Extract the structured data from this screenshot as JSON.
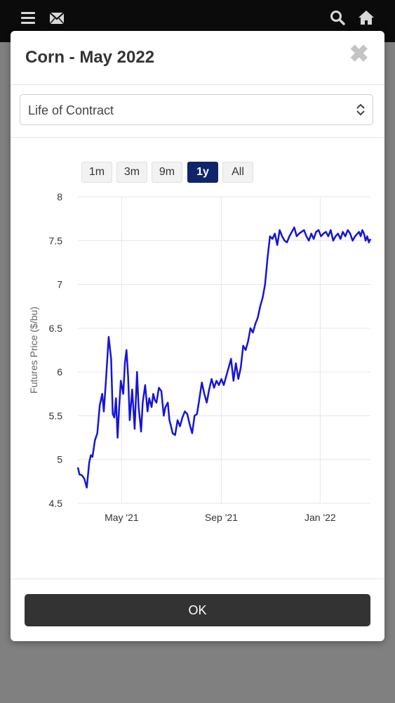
{
  "appbar": {
    "icons": [
      "menu-icon",
      "mail-icon",
      "search-icon",
      "home-icon"
    ]
  },
  "modal": {
    "title": "Corn - May 2022",
    "close_glyph": "✖",
    "select": {
      "value": "Life of Contract"
    },
    "ranges": [
      {
        "label": "1m",
        "active": false
      },
      {
        "label": "3m",
        "active": false
      },
      {
        "label": "9m",
        "active": false
      },
      {
        "label": "1y",
        "active": true
      },
      {
        "label": "All",
        "active": false
      }
    ],
    "ok_label": "OK"
  },
  "colors": {
    "line": "#1515d8",
    "active_range": "#10246a",
    "ok_button": "#333333"
  },
  "chart_data": {
    "type": "line",
    "title": "",
    "xlabel": "",
    "ylabel": "Futures Price ($/bu)",
    "ylim": [
      4.5,
      8
    ],
    "yticks": [
      "4.5",
      "5",
      "5.5",
      "6",
      "6.5",
      "7",
      "7.5",
      "8"
    ],
    "xticks": [
      {
        "label": "May '21",
        "date": "2021-05-01"
      },
      {
        "label": "Sep '21",
        "date": "2021-09-01"
      },
      {
        "label": "Jan '22",
        "date": "2022-01-01"
      }
    ],
    "xlim": [
      "2021-03-08",
      "2022-03-04"
    ],
    "grid": true,
    "series": [
      {
        "x": [
          "2021-03-08",
          "2021-03-10",
          "2021-03-13",
          "2021-03-16",
          "2021-03-19",
          "2021-03-22",
          "2021-03-24",
          "2021-03-26",
          "2021-03-29",
          "2021-04-01",
          "2021-04-04",
          "2021-04-07",
          "2021-04-09",
          "2021-04-12",
          "2021-04-15",
          "2021-04-18",
          "2021-04-20",
          "2021-04-22",
          "2021-04-24",
          "2021-04-26",
          "2021-04-28",
          "2021-04-30",
          "2021-05-03",
          "2021-05-05",
          "2021-05-07",
          "2021-05-09",
          "2021-05-11",
          "2021-05-14",
          "2021-05-17",
          "2021-05-20",
          "2021-05-22",
          "2021-05-25",
          "2021-05-27",
          "2021-05-30",
          "2021-06-02",
          "2021-06-04",
          "2021-06-07",
          "2021-06-09",
          "2021-06-11",
          "2021-06-13",
          "2021-06-16",
          "2021-06-19",
          "2021-06-22",
          "2021-06-24",
          "2021-06-27",
          "2021-06-29",
          "2021-07-01",
          "2021-07-03",
          "2021-07-06",
          "2021-07-09",
          "2021-07-12",
          "2021-07-15",
          "2021-07-18",
          "2021-07-21",
          "2021-07-24",
          "2021-07-27",
          "2021-07-30",
          "2021-08-02",
          "2021-08-05",
          "2021-08-08",
          "2021-08-11",
          "2021-08-14",
          "2021-08-17",
          "2021-08-20",
          "2021-08-23",
          "2021-08-26",
          "2021-08-29",
          "2021-09-01",
          "2021-09-04",
          "2021-09-07",
          "2021-09-10",
          "2021-09-13",
          "2021-09-16",
          "2021-09-19",
          "2021-09-22",
          "2021-09-25",
          "2021-09-28",
          "2021-10-01",
          "2021-10-04",
          "2021-10-07",
          "2021-10-10",
          "2021-10-13",
          "2021-10-16",
          "2021-10-19",
          "2021-10-22",
          "2021-10-25",
          "2021-10-28",
          "2021-10-31",
          "2021-11-03",
          "2021-11-06",
          "2021-11-09",
          "2021-11-12",
          "2021-11-15",
          "2021-11-18",
          "2021-11-21",
          "2021-11-24",
          "2021-11-27",
          "2021-11-30",
          "2021-12-03",
          "2021-12-06",
          "2021-12-09",
          "2021-12-12",
          "2021-12-15",
          "2021-12-18",
          "2021-12-21",
          "2021-12-24",
          "2021-12-27",
          "2021-12-30",
          "2022-01-02",
          "2022-01-05",
          "2022-01-08",
          "2022-01-11",
          "2022-01-14",
          "2022-01-17",
          "2022-01-20",
          "2022-01-23",
          "2022-01-26",
          "2022-01-29",
          "2022-02-01",
          "2022-02-04",
          "2022-02-07",
          "2022-02-10",
          "2022-02-13",
          "2022-02-16",
          "2022-02-18",
          "2022-02-20",
          "2022-02-22",
          "2022-02-24",
          "2022-02-26",
          "2022-02-28",
          "2022-03-02",
          "2022-03-04"
        ],
        "y": [
          4.91,
          4.83,
          4.82,
          4.78,
          4.68,
          4.97,
          5.05,
          5.03,
          5.22,
          5.3,
          5.62,
          5.75,
          5.55,
          5.95,
          6.4,
          6.15,
          5.52,
          5.48,
          5.7,
          5.25,
          5.6,
          5.9,
          5.75,
          6.1,
          6.25,
          5.95,
          5.45,
          5.8,
          5.35,
          6.0,
          5.6,
          5.32,
          5.65,
          5.85,
          5.55,
          5.7,
          5.6,
          5.75,
          5.68,
          5.65,
          5.82,
          5.78,
          5.5,
          5.6,
          5.65,
          5.45,
          5.38,
          5.3,
          5.28,
          5.45,
          5.38,
          5.48,
          5.55,
          5.52,
          5.4,
          5.3,
          5.5,
          5.52,
          5.7,
          5.88,
          5.75,
          5.65,
          5.8,
          5.92,
          5.82,
          5.9,
          5.85,
          5.92,
          5.85,
          5.95,
          6.05,
          6.15,
          5.9,
          6.1,
          5.92,
          6.05,
          6.3,
          6.25,
          6.35,
          6.5,
          6.45,
          6.55,
          6.62,
          6.75,
          6.85,
          7.0,
          7.3,
          7.55,
          7.52,
          7.58,
          7.45,
          7.62,
          7.55,
          7.5,
          7.48,
          7.55,
          7.6,
          7.65,
          7.55,
          7.58,
          7.6,
          7.62,
          7.55,
          7.5,
          7.58,
          7.52,
          7.6,
          7.62,
          7.55,
          7.58,
          7.6,
          7.55,
          7.62,
          7.5,
          7.55,
          7.58,
          7.52,
          7.6,
          7.55,
          7.62,
          7.58,
          7.5,
          7.55,
          7.58,
          7.6,
          7.55,
          7.62,
          7.58,
          7.5,
          7.55,
          7.48,
          7.52
        ]
      }
    ]
  }
}
